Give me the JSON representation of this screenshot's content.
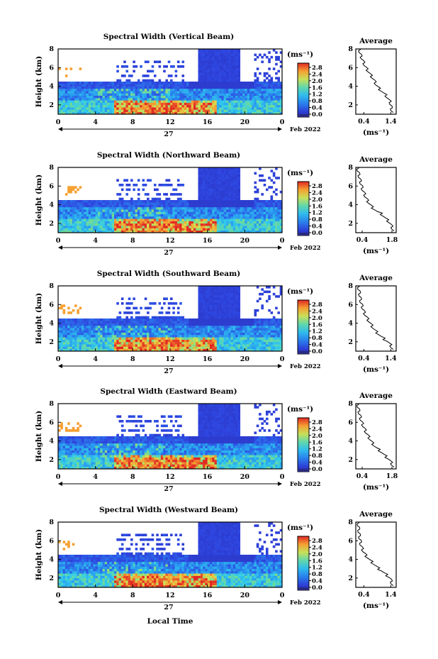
{
  "chart_data": {
    "type": "heatmap",
    "panels": [
      {
        "title": "Spectral Width (Vertical Beam)",
        "avg_xticks": [
          "0.4",
          "1.4"
        ],
        "avg_xlim": [
          0.1,
          1.6
        ],
        "profile": [
          1.45,
          1.42,
          1.4,
          1.38,
          1.3,
          1.22,
          1.1,
          0.98,
          0.88,
          0.82,
          0.76,
          0.68,
          0.6,
          0.52,
          0.45,
          0.4,
          0.35,
          0.3,
          0.26,
          0.24
        ]
      },
      {
        "title": "Spectral Width (Northward Beam)",
        "avg_xticks": [
          "0.4",
          "1.8"
        ],
        "avg_xlim": [
          0.1,
          2.0
        ],
        "profile": [
          1.85,
          1.8,
          1.72,
          1.6,
          1.45,
          1.3,
          1.05,
          0.88,
          0.76,
          0.66,
          0.58,
          0.52,
          0.45,
          0.4,
          0.36,
          0.32,
          0.28,
          0.25,
          0.22,
          0.2
        ]
      },
      {
        "title": "Spectral Width (Southward Beam)",
        "avg_xticks": [
          "0.4",
          "1.4"
        ],
        "avg_xlim": [
          0.1,
          1.6
        ],
        "profile": [
          1.45,
          1.4,
          1.3,
          1.15,
          1.0,
          0.88,
          0.78,
          0.7,
          0.62,
          0.55,
          0.48,
          0.42,
          0.38,
          0.34,
          0.3,
          0.28,
          0.26,
          0.24,
          0.22,
          0.2
        ]
      },
      {
        "title": "Spectral Width (Eastward Beam)",
        "avg_xticks": [
          "0.4",
          "1.8"
        ],
        "avg_xlim": [
          0.1,
          2.0
        ],
        "profile": [
          1.85,
          1.78,
          1.68,
          1.52,
          1.36,
          1.2,
          1.02,
          0.9,
          0.8,
          0.72,
          0.62,
          0.55,
          0.48,
          0.42,
          0.36,
          0.32,
          0.28,
          0.25,
          0.22,
          0.2
        ]
      },
      {
        "title": "Spectral Width (Westward Beam)",
        "avg_xticks": [
          "0.4",
          "1.4"
        ],
        "avg_xlim": [
          0.1,
          1.6
        ],
        "profile": [
          1.45,
          1.42,
          1.38,
          1.25,
          1.1,
          0.95,
          0.82,
          0.7,
          0.58,
          0.48,
          0.4,
          0.35,
          0.3,
          0.28,
          0.26,
          0.24,
          0.22,
          0.21,
          0.2,
          0.19
        ]
      }
    ],
    "ylabel": "Height (km)",
    "ylim": [
      1,
      8
    ],
    "yticks": [
      "2",
      "4",
      "6",
      "8"
    ],
    "xticks": [
      "0",
      "4",
      "8",
      "12",
      "16",
      "20",
      "0"
    ],
    "xlim": [
      0,
      24
    ],
    "date_label": "27",
    "month_label": "Feb 2022",
    "xlabel": "Local Time",
    "colorbar_unit": "(ms⁻¹)",
    "colorbar_ticks": [
      "2.8",
      "2.4",
      "2.0",
      "1.6",
      "1.2",
      "0.8",
      "0.4",
      "0.0"
    ],
    "avg_title": "Average",
    "avg_unit": "(ms⁻¹)",
    "avg_yticks": [
      "2",
      "4",
      "6",
      "8"
    ],
    "colors": {
      "low": "#2b3fd9",
      "mid": "#38c8e8",
      "high": "#e8382a"
    }
  }
}
